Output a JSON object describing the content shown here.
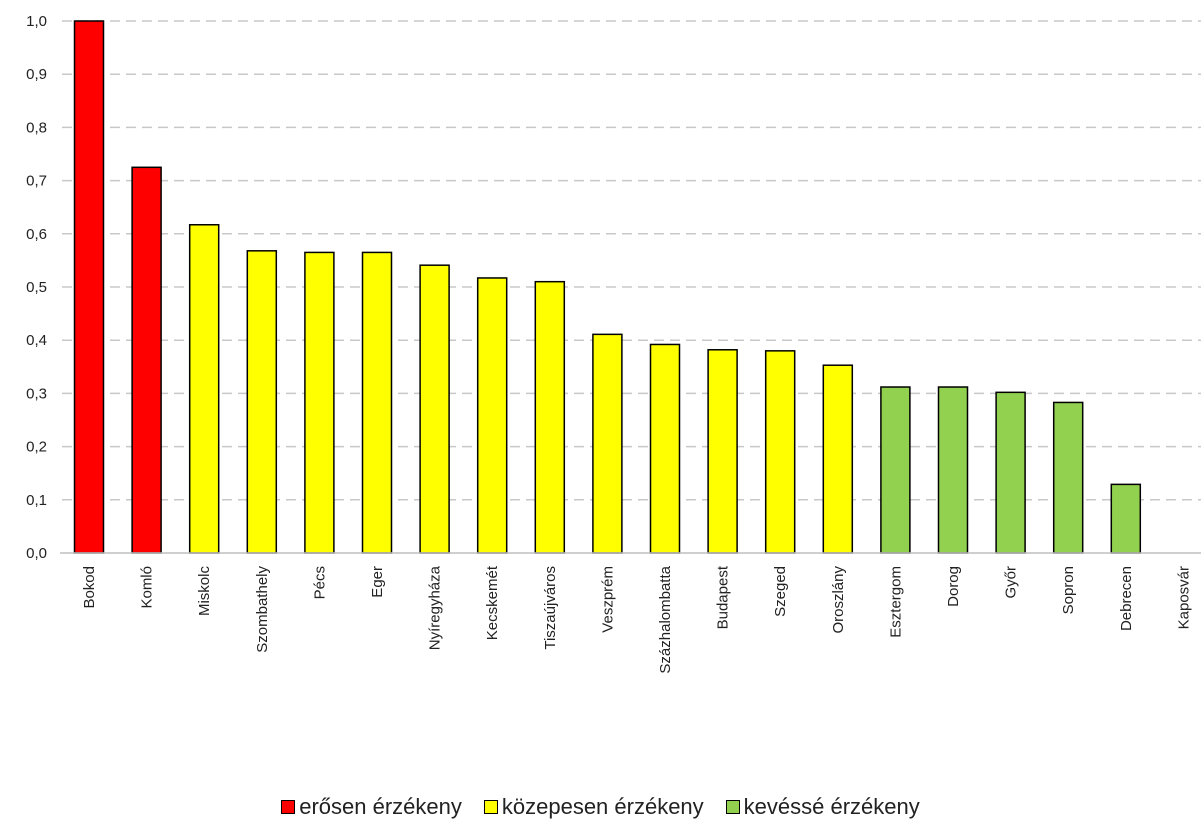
{
  "chart_data": {
    "type": "bar",
    "title": "",
    "xlabel": "",
    "ylabel": "",
    "ylim": [
      0,
      1.0
    ],
    "yticks": [
      "0,0",
      "0,1",
      "0,2",
      "0,3",
      "0,4",
      "0,5",
      "0,6",
      "0,7",
      "0,8",
      "0,9",
      "1,0"
    ],
    "grid": "horizontal dashed",
    "legend_position": "bottom",
    "categories": [
      "Bokod",
      "Komló",
      "Miskolc",
      "Szombathely",
      "Pécs",
      "Eger",
      "Nyíregyháza",
      "Kecskemét",
      "Tiszaújváros",
      "Veszprém",
      "Százhalombatta",
      "Budapest",
      "Szeged",
      "Oroszlány",
      "Esztergom",
      "Dorog",
      "Győr",
      "Sopron",
      "Debrecen",
      "Kaposvár"
    ],
    "values": [
      1.0,
      0.725,
      0.617,
      0.568,
      0.565,
      0.565,
      0.541,
      0.517,
      0.51,
      0.411,
      0.392,
      0.382,
      0.38,
      0.353,
      0.312,
      0.312,
      0.302,
      0.283,
      0.129,
      0.0
    ],
    "groups": [
      "high",
      "high",
      "medium",
      "medium",
      "medium",
      "medium",
      "medium",
      "medium",
      "medium",
      "medium",
      "medium",
      "medium",
      "medium",
      "medium",
      "low",
      "low",
      "low",
      "low",
      "low",
      "low"
    ],
    "legend": [
      {
        "key": "high",
        "label": "erősen érzékeny",
        "color": "#ff0000"
      },
      {
        "key": "medium",
        "label": "közepesen érzékeny",
        "color": "#ffff00"
      },
      {
        "key": "low",
        "label": "kevéssé érzékeny",
        "color": "#92d050"
      }
    ]
  }
}
